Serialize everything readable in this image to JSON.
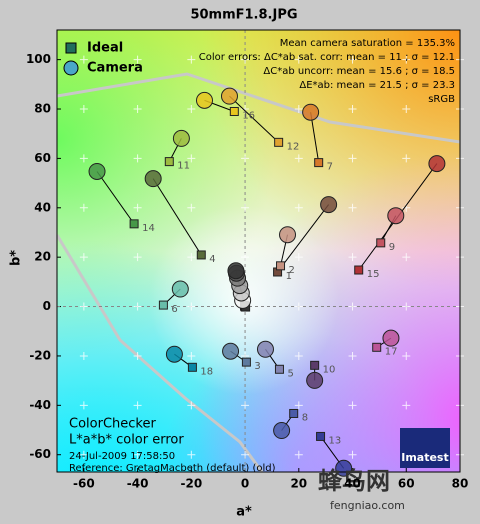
{
  "chart_data": {
    "type": "scatter",
    "title": "50mmF1.8.JPG",
    "xlabel": "a*",
    "ylabel": "b*",
    "xlim": [
      -70,
      80
    ],
    "ylim": [
      -67,
      112
    ],
    "xticks": [
      -60,
      -40,
      -20,
      0,
      20,
      40,
      60,
      80
    ],
    "yticks": [
      -60,
      -40,
      -20,
      0,
      20,
      40,
      60,
      80,
      100
    ],
    "legend": "upper left",
    "series": [
      {
        "name": "Ideal",
        "marker": "square",
        "color": "#1f6e5c",
        "x": [
          12.1,
          13.2,
          0.5,
          -16.3,
          12.8,
          -30.4,
          27.4,
          18.1,
          50.5,
          25.9,
          -28.2,
          12.5,
          28.1,
          -41.3,
          42.3,
          -4.0,
          49.0,
          -19.6,
          -0.1,
          -0.2,
          0.1,
          0.0,
          -0.1,
          0.2
        ],
        "y": [
          14.0,
          16.5,
          -22.5,
          20.9,
          -25.4,
          0.6,
          58.3,
          -43.3,
          25.8,
          -23.8,
          58.7,
          66.5,
          -52.6,
          33.5,
          14.8,
          79.0,
          -16.5,
          -24.6,
          0.5,
          0.2,
          0.0,
          -0.1,
          0.3,
          -0.2
        ]
      },
      {
        "name": "Camera",
        "marker": "circle",
        "color": "#4aa7c8",
        "x": [
          31.1,
          15.8,
          -5.4,
          -34.2,
          7.6,
          -24.1,
          24.4,
          13.6,
          56.1,
          25.9,
          -23.7,
          -5.8,
          36.7,
          -55.1,
          71.4,
          -15.1,
          54.3,
          -26.3,
          -0.9,
          -1.4,
          -2.0,
          -2.8,
          -3.2,
          -3.4
        ],
        "y": [
          41.3,
          29.1,
          -18.1,
          51.8,
          -17.3,
          7.1,
          78.7,
          -50.2,
          36.8,
          -29.9,
          68.1,
          85.2,
          -65.5,
          54.7,
          57.9,
          83.5,
          -12.8,
          -19.3,
          2.5,
          5.5,
          8.5,
          11.5,
          13.5,
          14.5
        ]
      }
    ],
    "patch_labels": [
      "1",
      "2",
      "3",
      "4",
      "5",
      "6",
      "7",
      "8",
      "9",
      "10",
      "11",
      "12",
      "13",
      "14",
      "15",
      "16",
      "17",
      "18",
      null,
      null,
      null,
      null,
      null,
      null
    ],
    "patch_colors": [
      "#734b3c",
      "#c49180",
      "#5e7a9e",
      "#586b3a",
      "#8283b0",
      "#68bdaa",
      "#d6782a",
      "#4a5ba7",
      "#c35461",
      "#5b3c6a",
      "#9dbb40",
      "#e0a230",
      "#343c96",
      "#469848",
      "#b13236",
      "#e8c61e",
      "#bb5597",
      "#0888a6",
      "#f3f3f2",
      "#c8c8c8",
      "#a0a0a0",
      "#7a7a79",
      "#555555",
      "#343434"
    ],
    "stats": [
      "Mean camera saturation = 135.3%",
      "Color errors: ΔC*ab sat. corr:  mean = 11 ;  σ = 12.1",
      "ΔC*ab uncorr:  mean = 15.6 ;  σ = 18.5",
      "ΔE*ab:  mean = 21.5 ;  σ = 23.3",
      "sRGB"
    ],
    "notes": [
      "ColorChecker",
      "L*a*b* color error",
      "24-Jul-2009 17:58:50",
      "Reference: GretagMacbeth (default) (old)"
    ],
    "watermark": [
      "Imatest",
      "蜂鸟网",
      "fengniao.com"
    ]
  }
}
